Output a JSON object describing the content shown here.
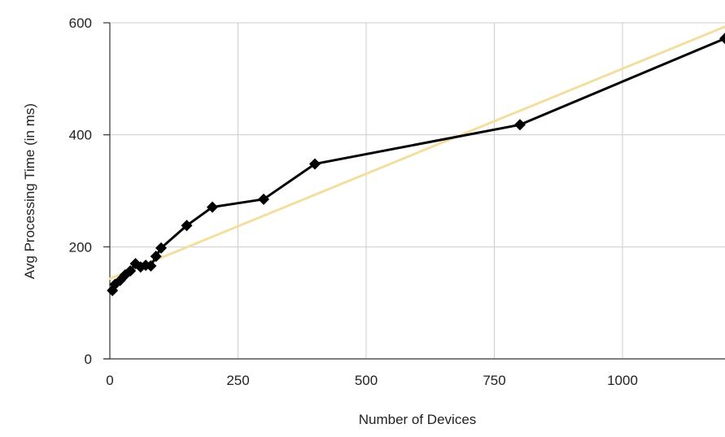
{
  "chart_data": {
    "type": "line",
    "title": "",
    "xlabel": "Number of Devices",
    "ylabel": "Avg Processing Time (in ms)",
    "xlim": [
      0,
      1200
    ],
    "ylim": [
      0,
      600
    ],
    "x_ticks": [
      0,
      250,
      500,
      750,
      1000
    ],
    "x_tick_labels": [
      "0",
      "250",
      "500",
      "750",
      "1000"
    ],
    "y_ticks": [
      0,
      200,
      400,
      600
    ],
    "y_tick_labels": [
      "0",
      "200",
      "400",
      "600"
    ],
    "grid": true,
    "legend": "none",
    "series": [
      {
        "marker": "diamond",
        "color": "#000000",
        "x": [
          5,
          10,
          20,
          30,
          40,
          50,
          60,
          70,
          80,
          90,
          100,
          150,
          200,
          300,
          400,
          800,
          1200
        ],
        "y": [
          122,
          133,
          140,
          150,
          157,
          170,
          164,
          167,
          166,
          183,
          198,
          238,
          271,
          285,
          348,
          418,
          572
        ]
      }
    ],
    "trendline": {
      "type": "linear",
      "color": "#f2dfa0",
      "x": [
        0,
        1200
      ],
      "y": [
        143,
        593
      ]
    }
  }
}
